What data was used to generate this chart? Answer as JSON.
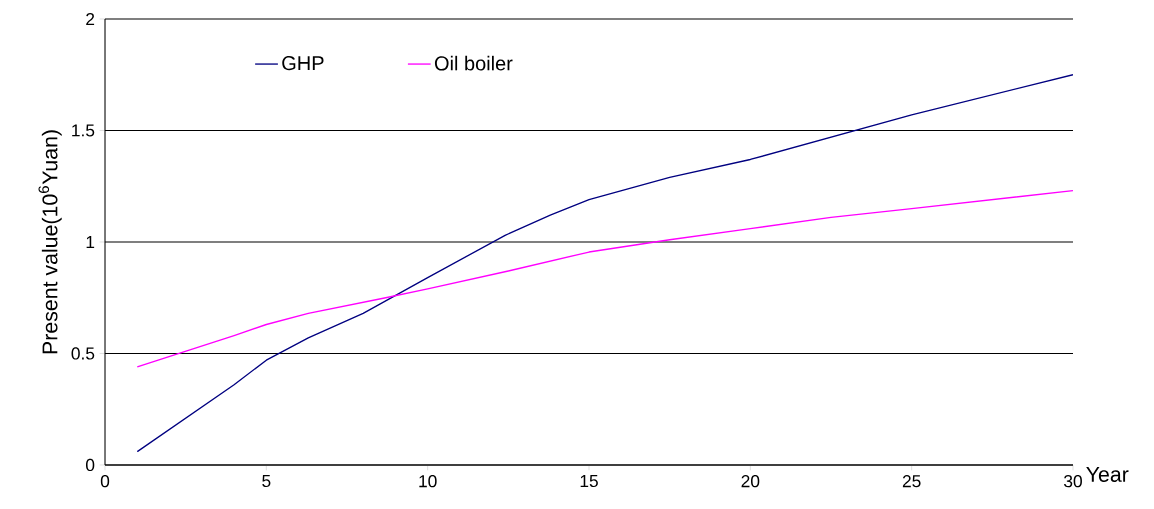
{
  "chart_data": {
    "type": "line",
    "xlabel": "Year",
    "ylabel": "Present value(10$^{6}$Yuan)",
    "series": [
      {
        "name": "GHP",
        "color": "#000080",
        "x": [
          1,
          4,
          5,
          6.3,
          8,
          10,
          12.4,
          13.8,
          15,
          17.5,
          20,
          25,
          30
        ],
        "values": [
          0.06,
          0.36,
          0.47,
          0.57,
          0.68,
          0.84,
          1.03,
          1.12,
          1.19,
          1.29,
          1.37,
          1.57,
          1.75
        ]
      },
      {
        "name": "Oil boiler",
        "color": "#ff00ff",
        "x": [
          1,
          4,
          5,
          6.3,
          8.7,
          10,
          12.5,
          15,
          17.5,
          20,
          22.5,
          25,
          30
        ],
        "values": [
          0.44,
          0.58,
          0.63,
          0.68,
          0.75,
          0.79,
          0.87,
          0.955,
          1.01,
          1.06,
          1.11,
          1.15,
          1.23
        ]
      }
    ],
    "xlim": [
      0,
      30
    ],
    "ylim": [
      0,
      2
    ],
    "xticks": [
      0,
      5,
      10,
      15,
      20,
      25,
      30
    ],
    "yticks": [
      0,
      0.5,
      1,
      1.5,
      2
    ],
    "grid": "y",
    "legend": "top",
    "marker": "none",
    "line_style": "solid"
  }
}
